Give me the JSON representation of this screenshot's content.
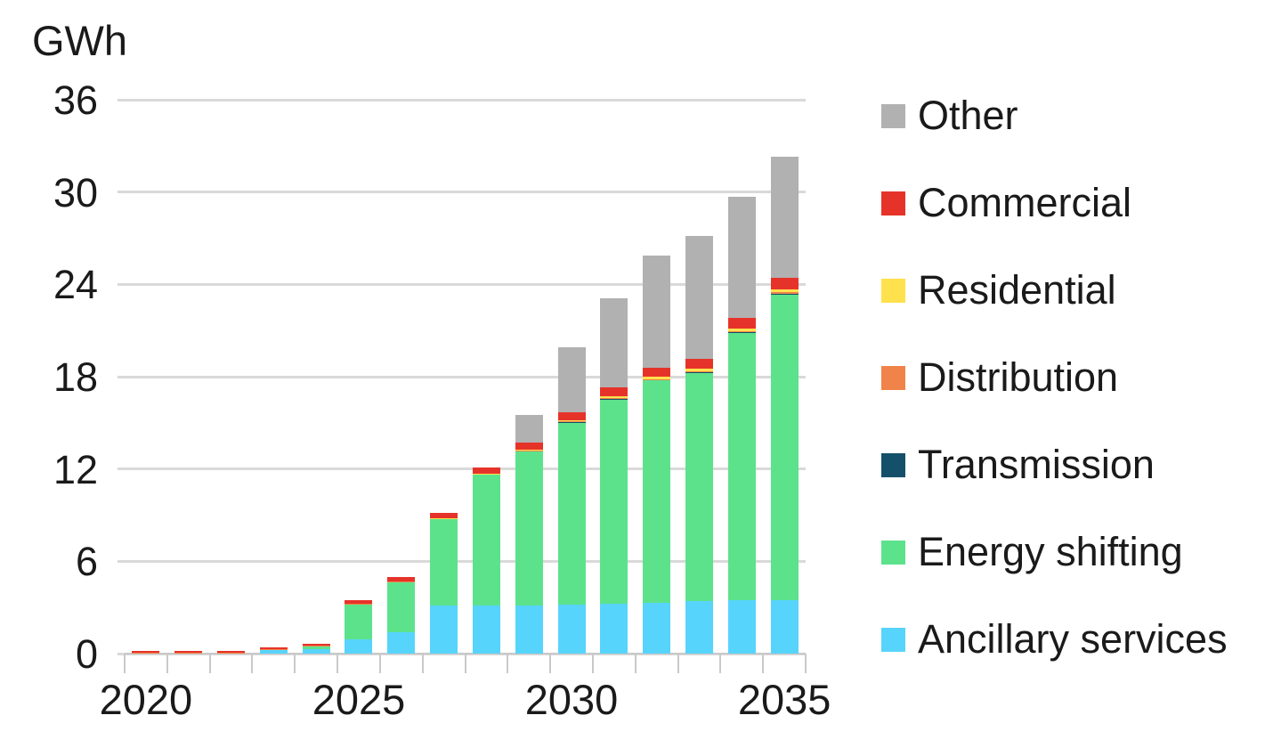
{
  "style": {
    "background": "#ffffff",
    "text_color": "#1a1a1a",
    "grid_color": "#d9d9d9",
    "axis_color": "#c9c9c9"
  },
  "chart_data": {
    "type": "bar",
    "stacked": true,
    "title": "",
    "xlabel": "",
    "ylabel": "GWh",
    "ylim": [
      0,
      36
    ],
    "y_ticks": [
      0,
      6,
      12,
      18,
      24,
      30,
      36
    ],
    "grid": "horizontal",
    "legend_position": "right",
    "legend_order_top_to_bottom": [
      "Other",
      "Commercial",
      "Residential",
      "Distribution",
      "Transmission",
      "Energy shifting",
      "Ancillary services"
    ],
    "categories": [
      2020,
      2021,
      2022,
      2023,
      2024,
      2025,
      2026,
      2027,
      2028,
      2029,
      2030,
      2031,
      2032,
      2033,
      2034,
      2035
    ],
    "x_tick_labeled_years": [
      2020,
      2025,
      2030,
      2035
    ],
    "series": [
      {
        "name": "Ancillary services",
        "color": "#57d4fc",
        "values": [
          0,
          0,
          0,
          0.22,
          0.3,
          0.9,
          1.4,
          3.1,
          3.1,
          3.15,
          3.2,
          3.25,
          3.3,
          3.4,
          3.45,
          3.5
        ]
      },
      {
        "name": "Energy shifting",
        "color": "#5de28c",
        "values": [
          0,
          0,
          0,
          0.06,
          0.18,
          2.33,
          3.28,
          5.65,
          8.55,
          10.0,
          11.85,
          13.3,
          14.45,
          14.85,
          17.4,
          19.85
        ]
      },
      {
        "name": "Transmission",
        "color": "#15506b",
        "values": [
          0,
          0,
          0,
          0,
          0,
          0,
          0,
          0,
          0,
          0.02,
          0.02,
          0.02,
          0.05,
          0.05,
          0.05,
          0.05
        ]
      },
      {
        "name": "Distribution",
        "color": "#f0834a",
        "values": [
          0.05,
          0.05,
          0.05,
          0.02,
          0.02,
          0.02,
          0.02,
          0.02,
          0.02,
          0.03,
          0.03,
          0.05,
          0.05,
          0.05,
          0.05,
          0.08
        ]
      },
      {
        "name": "Residential",
        "color": "#ffe14d",
        "values": [
          0,
          0,
          0,
          0,
          0,
          0,
          0,
          0.03,
          0.03,
          0.05,
          0.08,
          0.1,
          0.15,
          0.15,
          0.15,
          0.17
        ]
      },
      {
        "name": "Commercial",
        "color": "#e6332a",
        "values": [
          0.1,
          0.1,
          0.1,
          0.12,
          0.15,
          0.25,
          0.3,
          0.35,
          0.4,
          0.45,
          0.52,
          0.58,
          0.6,
          0.65,
          0.7,
          0.75
        ]
      },
      {
        "name": "Other",
        "color": "#b1b1b1",
        "values": [
          0,
          0,
          0,
          0,
          0,
          0,
          0,
          0,
          0,
          1.8,
          4.2,
          5.8,
          7.3,
          8.0,
          7.9,
          7.9
        ]
      }
    ],
    "totals": [
      0.15,
      0.15,
      0.15,
      0.42,
      0.65,
      3.5,
      5.0,
      9.15,
      12.1,
      15.5,
      19.9,
      23.1,
      25.9,
      27.15,
      29.7,
      32.3
    ]
  }
}
